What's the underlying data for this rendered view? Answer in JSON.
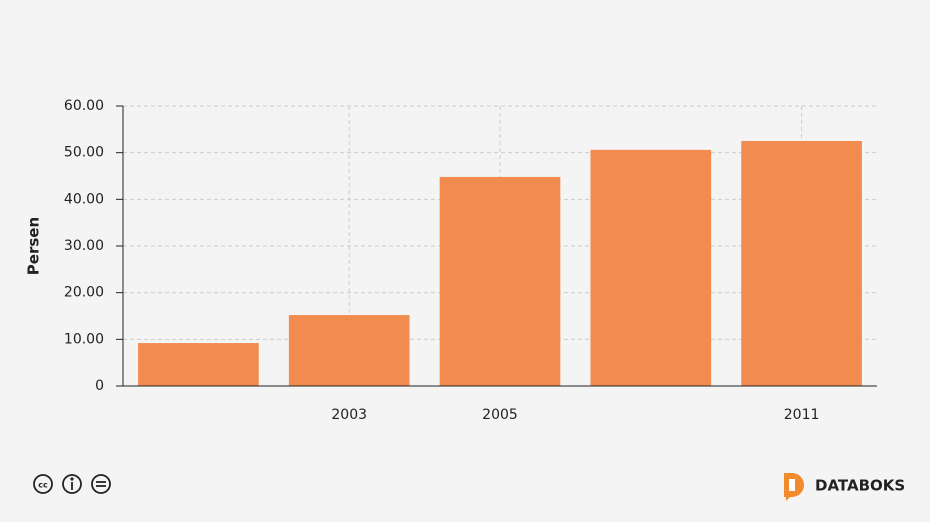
{
  "chart_data": {
    "type": "bar",
    "ylabel": "Persen",
    "categories": [
      null,
      "2003",
      "2005",
      null,
      "2011"
    ],
    "values": [
      9.2,
      15.2,
      44.8,
      50.6,
      52.5
    ],
    "color": "#f28b4e",
    "ylim": [
      0,
      60
    ],
    "yticks": [
      0,
      {
        "value": 10,
        "label": "10.00"
      },
      {
        "value": 20,
        "label": "20.00"
      },
      {
        "value": 30,
        "label": "30.00"
      },
      {
        "value": 40,
        "label": "40.00"
      },
      {
        "value": 50,
        "label": "50.00"
      },
      {
        "value": 60,
        "label": "60.00"
      }
    ],
    "grid": true
  },
  "footer": {
    "brand": "DATABOKS"
  }
}
